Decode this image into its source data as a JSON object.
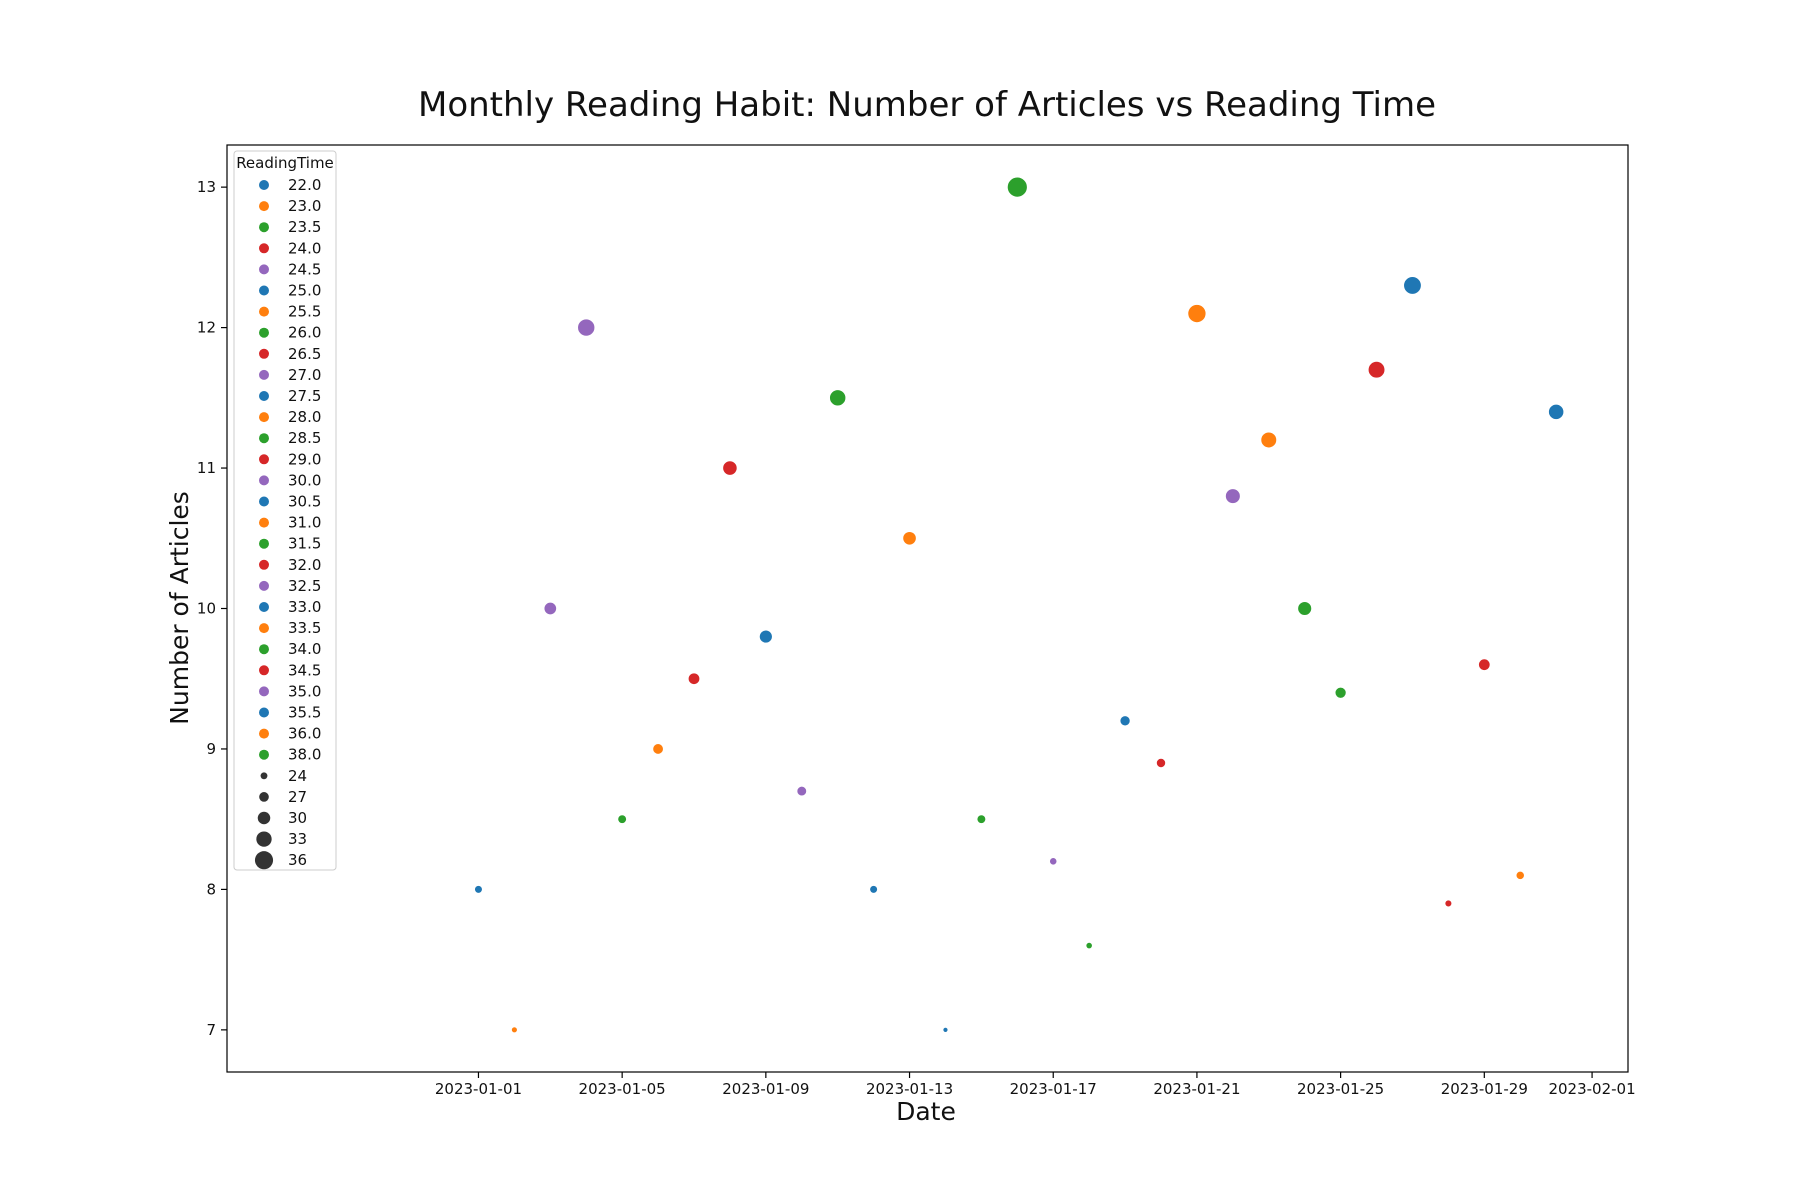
{
  "chart_data": {
    "type": "scatter",
    "title": "Monthly Reading Habit: Number of Articles vs Reading Time",
    "xlabel": "Date",
    "ylabel": "Number of Articles",
    "xlim": [
      "2022-12-25",
      "2023-02-02"
    ],
    "ylim": [
      6.7,
      13.3
    ],
    "x_ticks": [
      "2023-01-01",
      "2023-01-05",
      "2023-01-09",
      "2023-01-13",
      "2023-01-17",
      "2023-01-21",
      "2023-01-25",
      "2023-01-29",
      "2023-02-01"
    ],
    "y_ticks": [
      7,
      8,
      9,
      10,
      11,
      12,
      13
    ],
    "grid": false,
    "hue_variable": "ReadingTime",
    "size_variable": "ReadingTime",
    "legend_position": "upper-left",
    "legend_title": "ReadingTime",
    "palette": [
      "#1f77b4",
      "#ff7f0e",
      "#2ca02c",
      "#d62728",
      "#9467bd"
    ],
    "hue_levels": [
      "22.0",
      "23.0",
      "23.5",
      "24.0",
      "24.5",
      "25.0",
      "25.5",
      "26.0",
      "26.5",
      "27.0",
      "27.5",
      "28.0",
      "28.5",
      "29.0",
      "30.0",
      "30.5",
      "31.0",
      "31.5",
      "32.0",
      "32.5",
      "33.0",
      "33.5",
      "34.0",
      "34.5",
      "35.0",
      "35.5",
      "36.0",
      "38.0"
    ],
    "size_legend": [
      "24",
      "27",
      "30",
      "33",
      "36"
    ],
    "points": [
      {
        "date": "2023-01-01",
        "articles": 8.0,
        "reading_time": 25.0
      },
      {
        "date": "2023-01-02",
        "articles": 7.0,
        "reading_time": 23.0
      },
      {
        "date": "2023-01-03",
        "articles": 10.0,
        "reading_time": 30.0
      },
      {
        "date": "2023-01-04",
        "articles": 12.0,
        "reading_time": 35.0
      },
      {
        "date": "2023-01-05",
        "articles": 8.5,
        "reading_time": 26.0
      },
      {
        "date": "2023-01-06",
        "articles": 9.0,
        "reading_time": 28.0
      },
      {
        "date": "2023-01-07",
        "articles": 9.5,
        "reading_time": 29.0
      },
      {
        "date": "2023-01-08",
        "articles": 11.0,
        "reading_time": 32.0
      },
      {
        "date": "2023-01-09",
        "articles": 9.8,
        "reading_time": 30.5
      },
      {
        "date": "2023-01-10",
        "articles": 8.7,
        "reading_time": 27.0
      },
      {
        "date": "2023-01-11",
        "articles": 11.5,
        "reading_time": 34.0
      },
      {
        "date": "2023-01-12",
        "articles": 8.0,
        "reading_time": 25.0
      },
      {
        "date": "2023-01-13",
        "articles": 10.5,
        "reading_time": 31.0
      },
      {
        "date": "2023-01-14",
        "articles": 7.0,
        "reading_time": 22.0
      },
      {
        "date": "2023-01-15",
        "articles": 8.5,
        "reading_time": 26.0
      },
      {
        "date": "2023-01-16",
        "articles": 13.0,
        "reading_time": 38.0
      },
      {
        "date": "2023-01-17",
        "articles": 8.2,
        "reading_time": 24.5
      },
      {
        "date": "2023-01-18",
        "articles": 7.6,
        "reading_time": 23.5
      },
      {
        "date": "2023-01-19",
        "articles": 9.2,
        "reading_time": 27.5
      },
      {
        "date": "2023-01-20",
        "articles": 8.9,
        "reading_time": 26.5
      },
      {
        "date": "2023-01-21",
        "articles": 12.1,
        "reading_time": 36.0
      },
      {
        "date": "2023-01-22",
        "articles": 10.8,
        "reading_time": 32.5
      },
      {
        "date": "2023-01-23",
        "articles": 11.2,
        "reading_time": 33.5
      },
      {
        "date": "2023-01-24",
        "articles": 10.0,
        "reading_time": 31.5
      },
      {
        "date": "2023-01-25",
        "articles": 9.4,
        "reading_time": 28.5
      },
      {
        "date": "2023-01-26",
        "articles": 11.7,
        "reading_time": 34.5
      },
      {
        "date": "2023-01-27",
        "articles": 12.3,
        "reading_time": 35.5
      },
      {
        "date": "2023-01-28",
        "articles": 7.9,
        "reading_time": 24.0
      },
      {
        "date": "2023-01-29",
        "articles": 9.6,
        "reading_time": 29.0
      },
      {
        "date": "2023-01-30",
        "articles": 8.1,
        "reading_time": 25.5
      },
      {
        "date": "2023-01-31",
        "articles": 11.4,
        "reading_time": 33.0
      }
    ]
  }
}
